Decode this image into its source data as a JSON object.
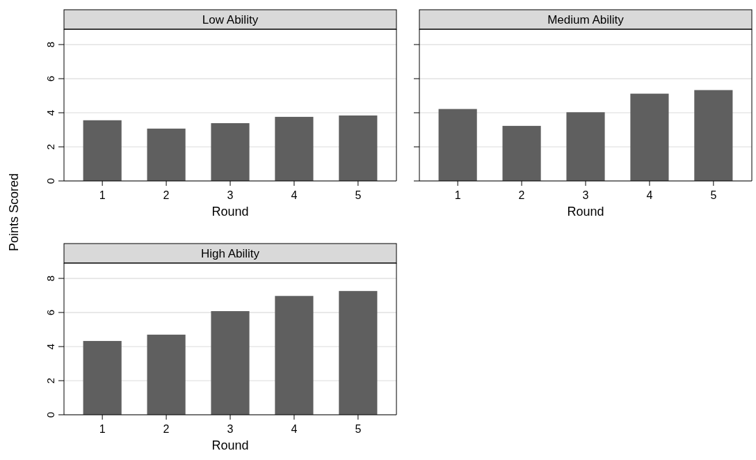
{
  "chart_data": [
    {
      "type": "bar",
      "title": "Low Ability",
      "xlabel": "Round",
      "ylabel": "Points Scored",
      "categories": [
        "1",
        "2",
        "3",
        "4",
        "5"
      ],
      "values": [
        3.56,
        3.07,
        3.39,
        3.76,
        3.84
      ],
      "color": "#5f5f5f",
      "ylim": [
        0,
        8.9
      ],
      "yticks": [
        0,
        2,
        4,
        6,
        8
      ],
      "grid": "y"
    },
    {
      "type": "bar",
      "title": "Medium Ability",
      "xlabel": "Round",
      "categories": [
        "1",
        "2",
        "3",
        "4",
        "5"
      ],
      "values": [
        4.22,
        3.23,
        4.03,
        5.12,
        5.33
      ],
      "color": "#5f5f5f",
      "ylim": [
        0,
        8.9
      ],
      "yticks": [
        0,
        2,
        4,
        6,
        8
      ],
      "grid": "y",
      "tick_labels": "x"
    },
    {
      "type": "bar",
      "title": "High Ability",
      "xlabel": "Round",
      "categories": [
        "1",
        "2",
        "3",
        "4",
        "5"
      ],
      "values": [
        4.33,
        4.7,
        6.08,
        6.97,
        7.26
      ],
      "color": "#5f5f5f",
      "ylim": [
        0,
        8.9
      ],
      "yticks": [
        0,
        2,
        4,
        6,
        8
      ],
      "grid": "y"
    }
  ]
}
